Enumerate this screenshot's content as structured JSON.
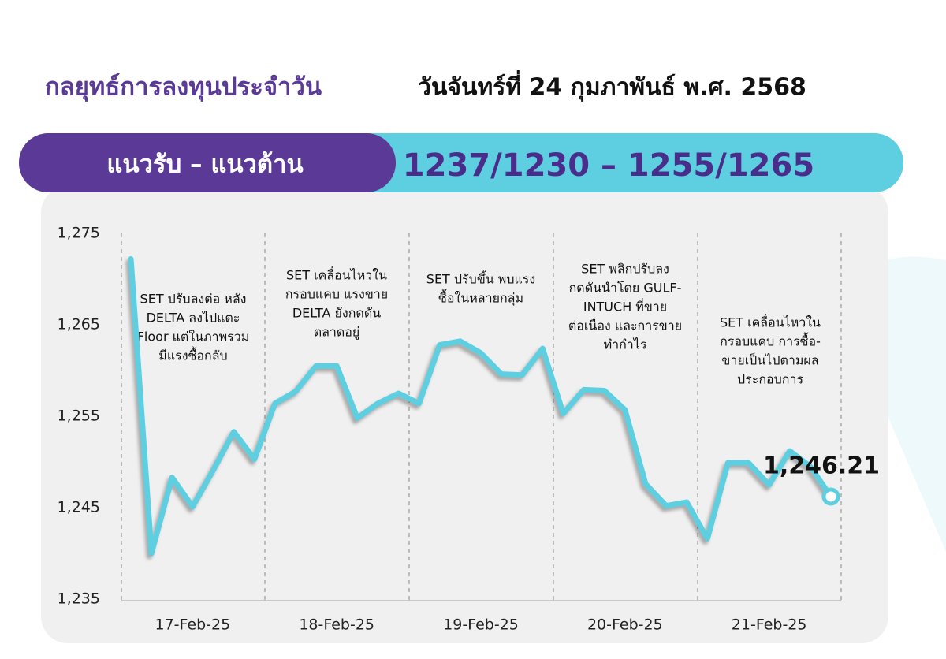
{
  "header": {
    "title": "กลยุทธ์การลงทุนประจำวัน",
    "date": "วันจันทร์ที่ 24 กุมภาพันธ์ พ.ศ. 2568"
  },
  "banner": {
    "label": "แนวรับ – แนวต้าน",
    "value": "1237/1230 – 1255/1265"
  },
  "chart_data": {
    "type": "line",
    "categories": [
      null,
      null,
      null,
      "17-Feb-25",
      null,
      null,
      null,
      null,
      null,
      null,
      "18-Feb-25",
      null,
      null,
      null,
      null,
      null,
      null,
      "19-Feb-25",
      null,
      null,
      null,
      null,
      null,
      null,
      "20-Feb-25",
      null,
      null,
      null,
      null,
      null,
      null,
      "21-Feb-25",
      null,
      null,
      null
    ],
    "series": [
      {
        "color": "#5dcfe0",
        "values": [
          1272.2,
          1240.0,
          1248.3,
          1245.1,
          1249.1,
          1253.3,
          1250.3,
          1256.4,
          1257.7,
          1260.5,
          1260.5,
          1254.8,
          1256.4,
          1257.5,
          1256.4,
          1262.8,
          1263.2,
          1261.9,
          1259.6,
          1259.5,
          1262.4,
          1255.3,
          1257.9,
          1257.8,
          1255.7,
          1247.6,
          1245.2,
          1245.6,
          1241.6,
          1249.9,
          1249.9,
          1247.5,
          1251.2,
          1249.5,
          1246.21
        ],
        "value_labels": [
          null,
          null,
          null,
          null,
          null,
          null,
          null,
          null,
          null,
          null,
          null,
          null,
          null,
          null,
          null,
          null,
          null,
          null,
          null,
          null,
          null,
          null,
          null,
          null,
          null,
          null,
          null,
          null,
          null,
          null,
          null,
          null,
          null,
          null,
          "1,246.21"
        ]
      }
    ],
    "ylim": [
      1235,
      1275
    ],
    "yticks": [
      {
        "value": 1235,
        "label": "1,235"
      },
      {
        "value": 1245,
        "label": "1,245"
      },
      {
        "value": 1255,
        "label": "1,255"
      },
      {
        "value": 1265,
        "label": "1,265"
      },
      {
        "value": 1275,
        "label": "1,275"
      }
    ],
    "grid": false,
    "annotations": [
      [
        "SET ปรับลงต่อ หลัง",
        "DELTA ลงไปแตะ",
        "Floor แต่ในภาพรวม",
        "มีแรงซื้อกลับ"
      ],
      [
        "SET เคลื่อนไหวใน",
        "กรอบแคบ แรงขาย",
        "DELTA ยังกดดัน",
        "ตลาดอยู่"
      ],
      [
        "SET ปรับขึ้น พบแรง",
        "ซื้อในหลายกลุ่ม"
      ],
      [
        "SET พลิกปรับลง",
        "กดดันนำโดย GULF-",
        "INTUCH ที่ขาย",
        "ต่อเนื่อง และการขาย",
        "ทำกำไร"
      ],
      [
        "SET เคลื่อนไหวใน",
        "กรอบแคบ การซื้อ-",
        "ขายเป็นไปตามผล",
        "ประกอบการ"
      ]
    ]
  }
}
